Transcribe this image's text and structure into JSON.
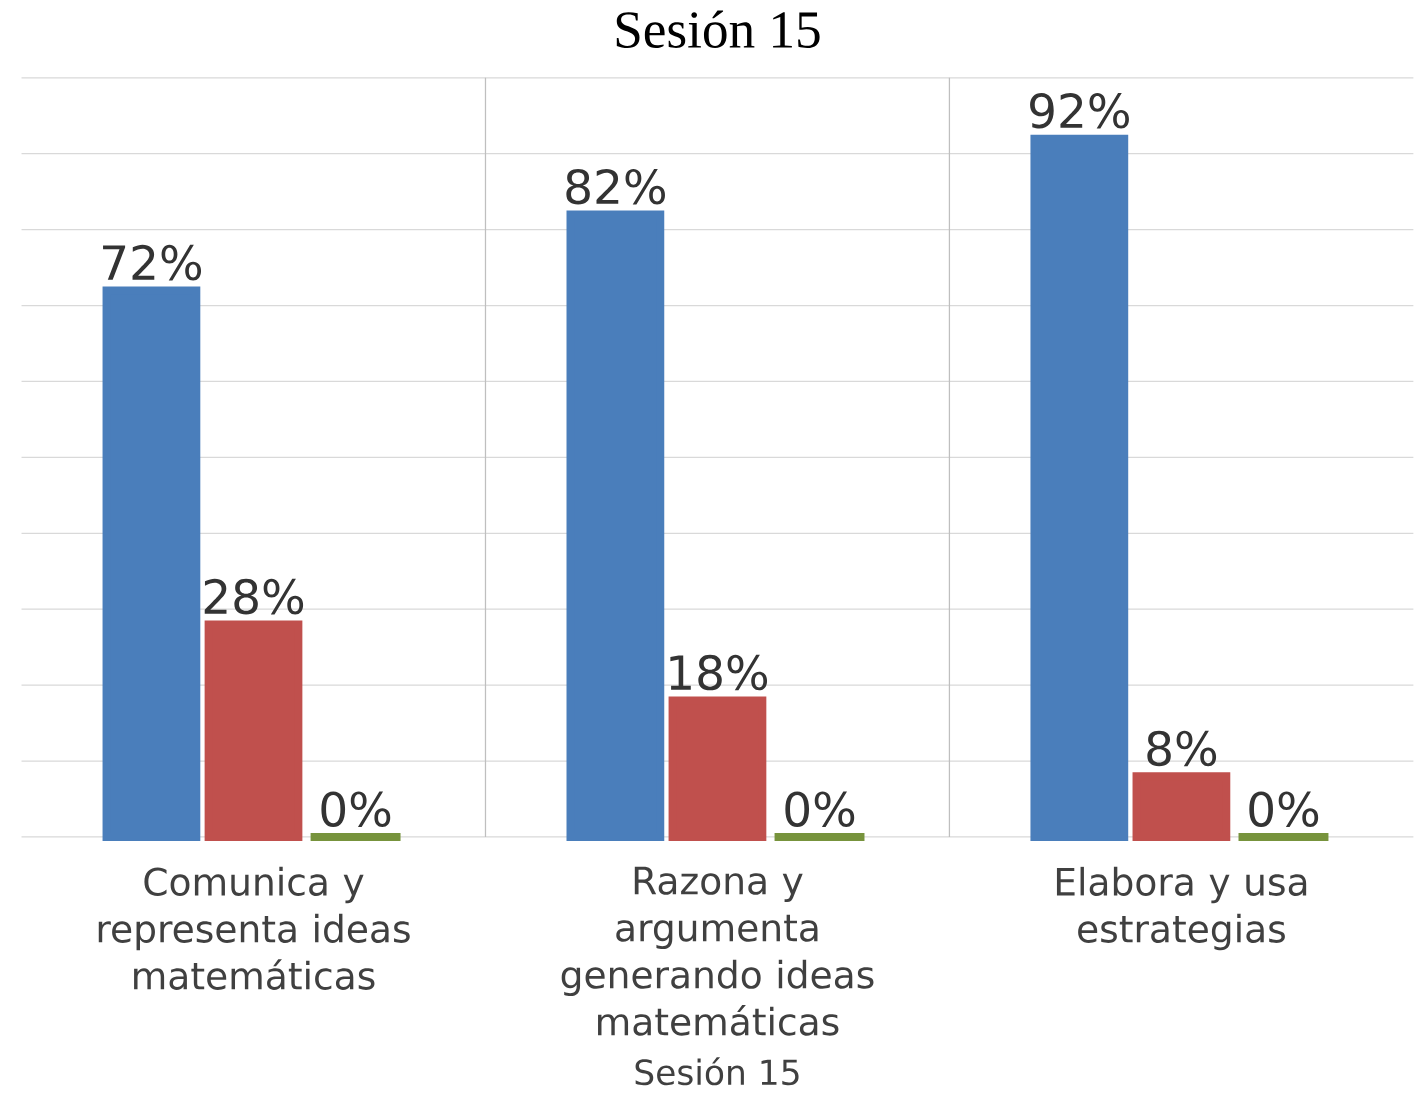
{
  "chart_data": {
    "type": "bar",
    "title": "Sesión 15",
    "xlabel": "Sesión 15",
    "categories": [
      "Comunica y representa ideas matemáticas",
      "Razona y argumenta generando ideas matemáticas",
      "Elabora y usa estrategias"
    ],
    "series": [
      {
        "color": "#4a7ebb",
        "values": [
          72,
          82,
          92
        ],
        "value_labels": [
          "72%",
          "82%",
          "92%"
        ]
      },
      {
        "color": "#c0504d",
        "values": [
          28,
          18,
          8
        ],
        "value_labels": [
          "28%",
          "18%",
          "8%"
        ]
      },
      {
        "color": "#77933c",
        "values": [
          0,
          0,
          0
        ],
        "value_labels": [
          "0%",
          "0%",
          "0%"
        ]
      }
    ],
    "ylim": [
      0,
      100
    ],
    "yticks": [
      {
        "value": 0,
        "label": null
      },
      {
        "value": 10,
        "label": null
      },
      {
        "value": 20,
        "label": null
      },
      {
        "value": 30,
        "label": null
      },
      {
        "value": 40,
        "label": null
      },
      {
        "value": 50,
        "label": null
      },
      {
        "value": 60,
        "label": null
      },
      {
        "value": 70,
        "label": null
      },
      {
        "value": 80,
        "label": null
      },
      {
        "value": 90,
        "label": null
      },
      {
        "value": 100,
        "label": null
      }
    ],
    "grid": "y",
    "tick_labels": "x"
  }
}
